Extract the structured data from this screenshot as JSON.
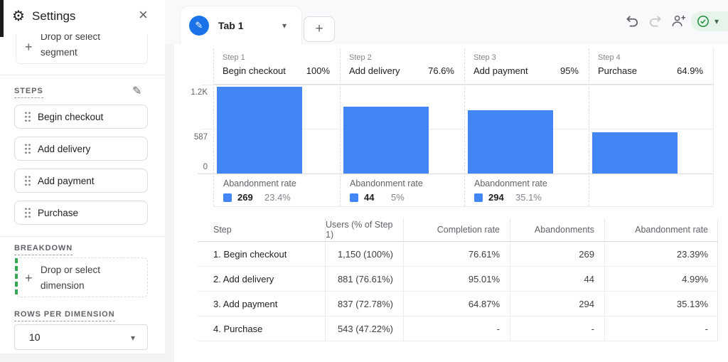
{
  "colors": {
    "bar_blue": "#4285f4",
    "accent_blue": "#1a73e8",
    "apply_green": "#1e8e3e",
    "apply_pill_bg": "#e6f4ea"
  },
  "icons": {
    "gear": "⚙",
    "close": "×",
    "plus": "+",
    "caret_down": "▾",
    "pencil": "✎",
    "tab_pencil": "✎"
  },
  "sidebar": {
    "title": "Settings",
    "segment_drop_label": "Drop or select segment",
    "steps_label": "STEPS",
    "steps": [
      "Begin checkout",
      "Add delivery",
      "Add payment",
      "Purchase"
    ],
    "breakdown_label": "BREAKDOWN",
    "dimension_drop_label": "Drop or select dimension",
    "rows_per_dimension_label": "ROWS PER DIMENSION",
    "rows_per_dimension_value": "10"
  },
  "topbar": {
    "tab_label": "Tab 1"
  },
  "chart_data": {
    "type": "bar",
    "categories": [
      "Begin checkout",
      "Add delivery",
      "Add payment",
      "Purchase"
    ],
    "values": [
      1150,
      881,
      837,
      543
    ],
    "ymax": 1174,
    "yticks": [
      "1.2K",
      "587",
      "0"
    ],
    "bar_color": "#4285f4",
    "legend_position": "none",
    "grid": true,
    "step_headers": [
      {
        "step": "Step 1",
        "name": "Begin checkout",
        "pct": "100%"
      },
      {
        "step": "Step 2",
        "name": "Add delivery",
        "pct": "76.6%"
      },
      {
        "step": "Step 3",
        "name": "Add payment",
        "pct": "95%"
      },
      {
        "step": "Step 4",
        "name": "Purchase",
        "pct": "64.9%"
      }
    ],
    "abandonments": [
      {
        "label": "Abandonment rate",
        "count": "269",
        "rate": "23.4%"
      },
      {
        "label": "Abandonment rate",
        "count": "44",
        "rate": "5%"
      },
      {
        "label": "Abandonment rate",
        "count": "294",
        "rate": "35.1%"
      }
    ]
  },
  "table": {
    "headers": [
      "Step",
      "Users (% of Step 1)",
      "Completion rate",
      "Abandonments",
      "Abandonment rate"
    ],
    "rows": [
      [
        "1. Begin checkout",
        "1,150 (100%)",
        "76.61%",
        "269",
        "23.39%"
      ],
      [
        "2. Add delivery",
        "881 (76.61%)",
        "95.01%",
        "44",
        "4.99%"
      ],
      [
        "3. Add payment",
        "837 (72.78%)",
        "64.87%",
        "294",
        "35.13%"
      ],
      [
        "4. Purchase",
        "543 (47.22%)",
        "-",
        "-",
        "-"
      ]
    ]
  }
}
